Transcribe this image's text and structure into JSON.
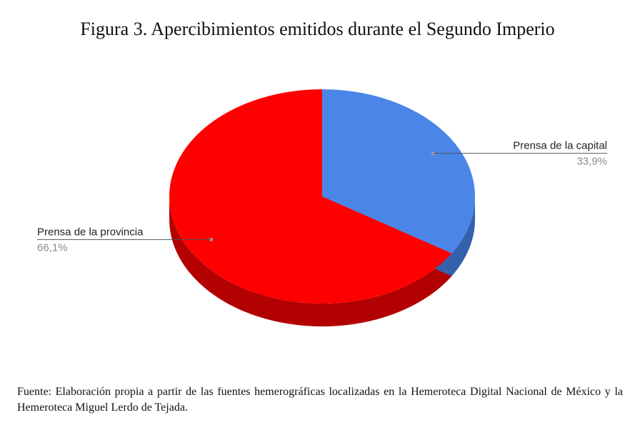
{
  "title": "Figura 3. Apercibimientos emitidos durante el Segundo Imperio",
  "source": "Fuente: Elaboración propia a partir de las fuentes hemerográficas localizadas en la Hemeroteca Digital Nacional de México y la Hemeroteca Miguel Lerdo de Tejada.",
  "chart_data": {
    "type": "pie",
    "style": "3d",
    "title": "Figura 3. Apercibimientos emitidos durante el Segundo Imperio",
    "slices": [
      {
        "name": "Prensa de la capital",
        "value": 33.9,
        "label": "33,9%",
        "color": "#4a86e8",
        "side_color": "#3560ad"
      },
      {
        "name": "Prensa de la provincia",
        "value": 66.1,
        "label": "66,1%",
        "color": "#ff0000",
        "side_color": "#b30000"
      }
    ]
  }
}
